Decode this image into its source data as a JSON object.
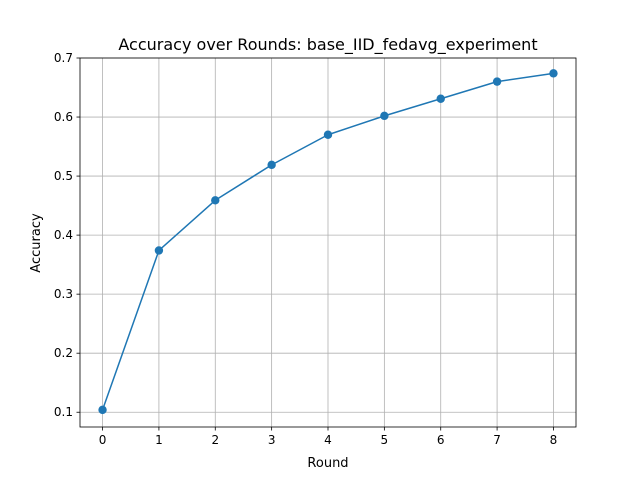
{
  "chart_data": {
    "type": "line",
    "title": "Accuracy over Rounds: base_IID_fedavg_experiment",
    "xlabel": "Round",
    "ylabel": "Accuracy",
    "x": [
      0,
      1,
      2,
      3,
      4,
      5,
      6,
      7,
      8
    ],
    "series": [
      {
        "values": [
          0.104,
          0.374,
          0.459,
          0.519,
          0.57,
          0.602,
          0.631,
          0.66,
          0.674
        ]
      }
    ],
    "xlim": [
      -0.4,
      8.4
    ],
    "ylim": [
      0.075,
      0.7
    ],
    "xticks": [
      "0",
      "1",
      "2",
      "3",
      "4",
      "5",
      "6",
      "7",
      "8"
    ],
    "yticks": [
      "0.1",
      "0.2",
      "0.3",
      "0.4",
      "0.5",
      "0.6",
      "0.7"
    ],
    "grid": true,
    "marker": "circle",
    "line_color": "#1f77b4",
    "grid_color": "#b0b0b0"
  }
}
